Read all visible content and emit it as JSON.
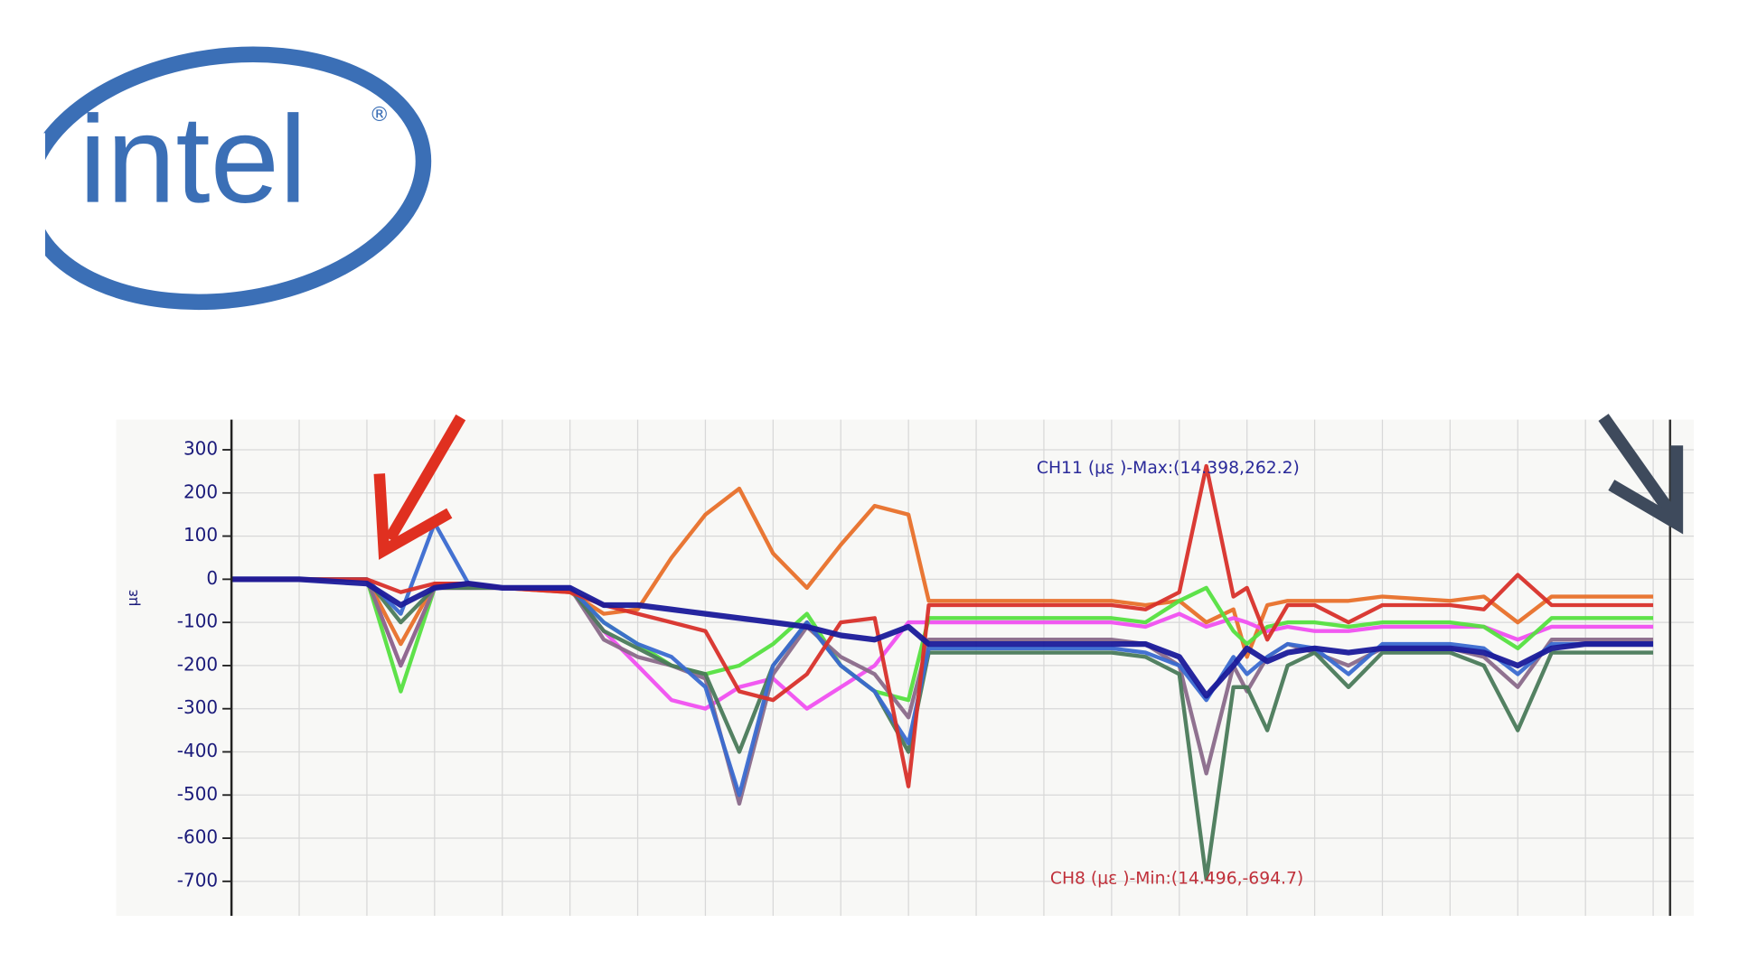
{
  "logo": {
    "text": "intel",
    "mark": "®"
  },
  "chart_data": {
    "type": "line",
    "y_label": "με",
    "annotations": [
      "CH11 (με )-Max:(14.398,262.2)",
      "CH8 (με )-Min:(14.496,-694.7)"
    ],
    "x": [
      0,
      1,
      2,
      2.5,
      3,
      3.5,
      4,
      5,
      5.5,
      6,
      6.5,
      7,
      7.5,
      8,
      8.5,
      9,
      9.5,
      10,
      10.3,
      10.5,
      11,
      12,
      13,
      13.5,
      14,
      14.4,
      14.8,
      15,
      15.3,
      15.6,
      16,
      16.5,
      17,
      18,
      18.5,
      19,
      19.5,
      20,
      21
    ],
    "xlim": [
      0,
      21.6
    ],
    "xticks": [
      0,
      1,
      2,
      3,
      4,
      5,
      6,
      7,
      8,
      9,
      10,
      11,
      12,
      13,
      14,
      15,
      16,
      17,
      18,
      19,
      20,
      21
    ],
    "ylim": [
      -780,
      370
    ],
    "yticks": [
      -700,
      -600,
      -500,
      -400,
      -300,
      -200,
      -100,
      0,
      100,
      200,
      300
    ],
    "grid": true,
    "series": [
      {
        "color": "#e8702a",
        "values": [
          0,
          0,
          0,
          -150,
          -10,
          -10,
          -20,
          -30,
          -80,
          -70,
          50,
          150,
          210,
          60,
          -20,
          80,
          170,
          150,
          -50,
          -50,
          -50,
          -50,
          -50,
          -60,
          -50,
          -100,
          -70,
          -180,
          -60,
          -50,
          -50,
          -50,
          -40,
          -50,
          -40,
          -100,
          -40,
          -40,
          -40
        ]
      },
      {
        "color": "#f050f0",
        "values": [
          0,
          0,
          0,
          -200,
          -20,
          -20,
          -20,
          -20,
          -120,
          -200,
          -280,
          -300,
          -250,
          -230,
          -300,
          -250,
          -200,
          -100,
          -100,
          -100,
          -100,
          -100,
          -100,
          -110,
          -80,
          -110,
          -90,
          -100,
          -120,
          -110,
          -120,
          -120,
          -110,
          -110,
          -110,
          -140,
          -110,
          -110,
          -110
        ]
      },
      {
        "color": "#55e040",
        "values": [
          0,
          0,
          0,
          -260,
          -20,
          -10,
          -20,
          -20,
          -100,
          -150,
          -200,
          -220,
          -200,
          -150,
          -80,
          -200,
          -260,
          -280,
          -90,
          -90,
          -90,
          -90,
          -90,
          -100,
          -50,
          -20,
          -120,
          -150,
          -110,
          -100,
          -100,
          -110,
          -100,
          -100,
          -110,
          -160,
          -90,
          -90,
          -90
        ]
      },
      {
        "color": "#8a6a8a",
        "values": [
          0,
          0,
          0,
          -200,
          -20,
          -20,
          -20,
          -20,
          -140,
          -180,
          -200,
          -230,
          -520,
          -220,
          -110,
          -180,
          -220,
          -320,
          -140,
          -140,
          -140,
          -140,
          -140,
          -150,
          -200,
          -450,
          -200,
          -260,
          -180,
          -150,
          -170,
          -200,
          -160,
          -160,
          -180,
          -250,
          -140,
          -140,
          -140
        ]
      },
      {
        "color": "#4a7a5a",
        "values": [
          0,
          0,
          0,
          -100,
          -20,
          -20,
          -20,
          -20,
          -120,
          -160,
          -200,
          -220,
          -400,
          -200,
          -100,
          -200,
          -260,
          -400,
          -170,
          -170,
          -170,
          -170,
          -170,
          -180,
          -220,
          -694.7,
          -250,
          -250,
          -350,
          -200,
          -170,
          -250,
          -170,
          -170,
          -200,
          -350,
          -170,
          -170,
          -170
        ]
      },
      {
        "color": "#3a6ad0",
        "values": [
          0,
          0,
          0,
          -80,
          130,
          -10,
          -20,
          -20,
          -100,
          -150,
          -180,
          -250,
          -500,
          -200,
          -100,
          -200,
          -260,
          -380,
          -160,
          -160,
          -160,
          -160,
          -160,
          -170,
          -200,
          -280,
          -180,
          -220,
          -180,
          -150,
          -160,
          -220,
          -150,
          -150,
          -160,
          -220,
          -150,
          -150,
          -150
        ]
      },
      {
        "color": "#d8302a",
        "values": [
          0,
          0,
          0,
          -30,
          -10,
          -10,
          -20,
          -30,
          -60,
          -80,
          -100,
          -120,
          -260,
          -280,
          -220,
          -100,
          -90,
          -480,
          -60,
          -60,
          -60,
          -60,
          -60,
          -70,
          -30,
          262.2,
          -40,
          -20,
          -140,
          -60,
          -60,
          -100,
          -60,
          -60,
          -70,
          10,
          -60,
          -60,
          -60
        ]
      },
      {
        "color": "#1a1a9a",
        "values": [
          0,
          0,
          -10,
          -60,
          -20,
          -10,
          -20,
          -20,
          -60,
          -60,
          -70,
          -80,
          -90,
          -100,
          -110,
          -130,
          -140,
          -110,
          -150,
          -150,
          -150,
          -150,
          -150,
          -150,
          -180,
          -270,
          -200,
          -160,
          -190,
          -170,
          -160,
          -170,
          -160,
          -160,
          -170,
          -200,
          -160,
          -150,
          -150
        ]
      }
    ]
  }
}
